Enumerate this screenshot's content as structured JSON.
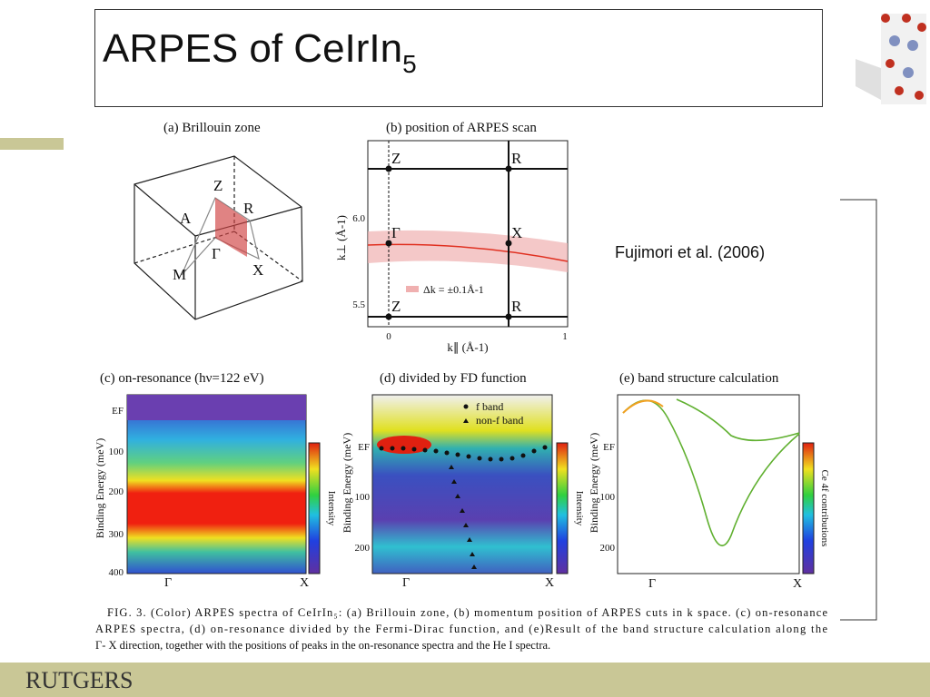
{
  "header": {
    "title": "ARPES of CeIrIn",
    "title_subscript": "5"
  },
  "citation": "Fujimori et al. (2006)",
  "figure": {
    "panel_a": {
      "label": "(a) Brillouin zone",
      "points": [
        "Z",
        "R",
        "A",
        "Γ",
        "M",
        "X"
      ]
    },
    "panel_b": {
      "label": "(b) position of ARPES scan",
      "points": [
        "Z",
        "R",
        "Γ",
        "X",
        "Z",
        "R"
      ],
      "y_ticks": [
        "6.0",
        "5.5"
      ],
      "x_ticks": [
        "0",
        "1"
      ],
      "y_axis": "k⊥ (Å-1)",
      "x_axis": "k∥ (Å-1)",
      "legend": "Δk = ±0.1Å-1"
    },
    "panel_c": {
      "label": "(c) on-resonance (hν=122 eV)",
      "y_ticks": [
        "EF",
        "100",
        "200",
        "300",
        "400"
      ],
      "x_ticks": [
        "Γ",
        "X"
      ],
      "y_axis": "Binding Energy (meV)",
      "colorbar": "Intensity"
    },
    "panel_d": {
      "label": "(d) divided by FD function",
      "y_ticks": [
        "EF",
        "100",
        "200"
      ],
      "x_ticks": [
        "Γ",
        "X"
      ],
      "y_axis": "Binding Energy (meV)",
      "colorbar": "Intensity",
      "legend": [
        "f band",
        "non-f band"
      ]
    },
    "panel_e": {
      "label": "(e) band structure calculation",
      "y_ticks": [
        "EF",
        "100",
        "200"
      ],
      "x_ticks": [
        "Γ",
        "X"
      ],
      "y_axis": "Binding Energy (meV)",
      "colorbar": "Ce 4f contributions"
    },
    "caption": [
      "FIG. 3. (Color) ARPES spectra of CeIrIn₅: (a) Brillouin zone, (b) momentum position of ARPES cuts in k space. (c) on-resonance",
      "ARPES spectra, (d) on-resonance divided by the Fermi-Dirac function, and (e)Result of the band structure calculation along the",
      "Γ- X direction, together with the positions of peaks in the on-resonance spectra and the He I spectra."
    ]
  },
  "footer": {
    "logo": "RUTGERS"
  }
}
